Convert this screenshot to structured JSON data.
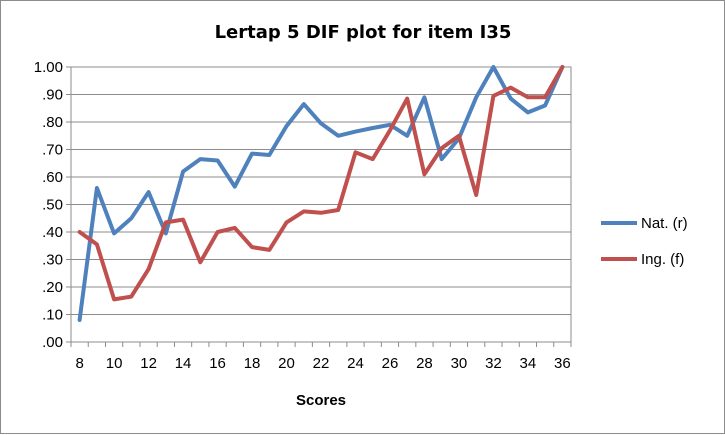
{
  "chart_data": {
    "type": "line",
    "title": "Lertap 5 DIF plot for item I35",
    "xlabel": "Scores",
    "ylabel": "",
    "x": [
      8,
      9,
      10,
      11,
      12,
      13,
      14,
      15,
      16,
      17,
      18,
      19,
      20,
      21,
      22,
      23,
      24,
      25,
      26,
      27,
      28,
      29,
      30,
      31,
      32,
      33,
      34,
      35,
      36
    ],
    "xlim": [
      7.5,
      36.5
    ],
    "ylim": [
      0,
      1
    ],
    "x_ticks": [
      "8",
      "10",
      "12",
      "14",
      "16",
      "18",
      "20",
      "22",
      "24",
      "26",
      "28",
      "30",
      "32",
      "34",
      "36"
    ],
    "y_ticks": [
      ".00",
      ".10",
      ".20",
      ".30",
      ".40",
      ".50",
      ".60",
      ".70",
      ".80",
      ".90",
      "1.00"
    ],
    "grid": "horizontal",
    "legend_position": "right",
    "series": [
      {
        "name": "Nat. (r)",
        "color": "#4f81bd",
        "values": [
          0.08,
          0.56,
          0.395,
          0.45,
          0.545,
          0.395,
          0.62,
          0.665,
          0.66,
          0.565,
          0.685,
          0.68,
          0.785,
          0.865,
          0.795,
          0.75,
          0.765,
          0.778,
          0.79,
          0.75,
          0.89,
          0.665,
          0.74,
          0.89,
          1.0,
          0.885,
          0.835,
          0.86,
          1.0
        ]
      },
      {
        "name": "Ing. (f)",
        "color": "#c0504d",
        "values": [
          0.4,
          0.355,
          0.155,
          0.165,
          0.265,
          0.435,
          0.445,
          0.29,
          0.4,
          0.415,
          0.345,
          0.335,
          0.435,
          0.475,
          0.47,
          0.48,
          0.69,
          0.665,
          0.77,
          0.885,
          0.61,
          0.705,
          0.75,
          0.535,
          0.895,
          0.925,
          0.89,
          0.89,
          1.0
        ]
      }
    ]
  }
}
